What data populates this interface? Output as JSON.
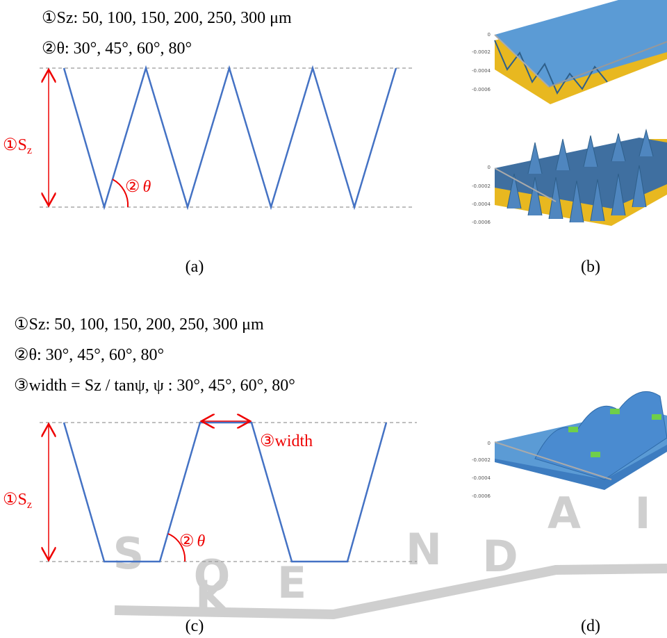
{
  "panels": [
    {
      "label": "(a)",
      "params": [
        "①Sz: 50, 100, 150, 200, 250, 300 μm",
        "②θ: 30°, 45°, 60°, 80°"
      ],
      "height_label": {
        "main": "①S",
        "sub": "z"
      },
      "angle_label": {
        "number": "②",
        "symbol": "θ"
      }
    },
    {
      "label": "(b)",
      "zticks": [
        "0",
        "-0.0002",
        "-0.0004",
        "-0.0006"
      ]
    },
    {
      "label": "(c)",
      "params": [
        "①Sz: 50, 100, 150, 200, 250, 300 μm",
        "②θ: 30°, 45°, 60°, 80°",
        "③width = Sz / tanψ, ψ : 30°, 45°, 60°, 80°"
      ],
      "height_label": {
        "main": "①S",
        "sub": "z"
      },
      "angle_label": {
        "number": "②",
        "symbol": "θ"
      },
      "width_label": "③width"
    },
    {
      "label": "(d)",
      "zticks": [
        "0",
        "-0.0002",
        "-0.0004",
        "-0.0006"
      ]
    }
  ],
  "watermark": [
    "S",
    "O",
    "K",
    "E",
    "N",
    "D",
    "A",
    "I"
  ]
}
